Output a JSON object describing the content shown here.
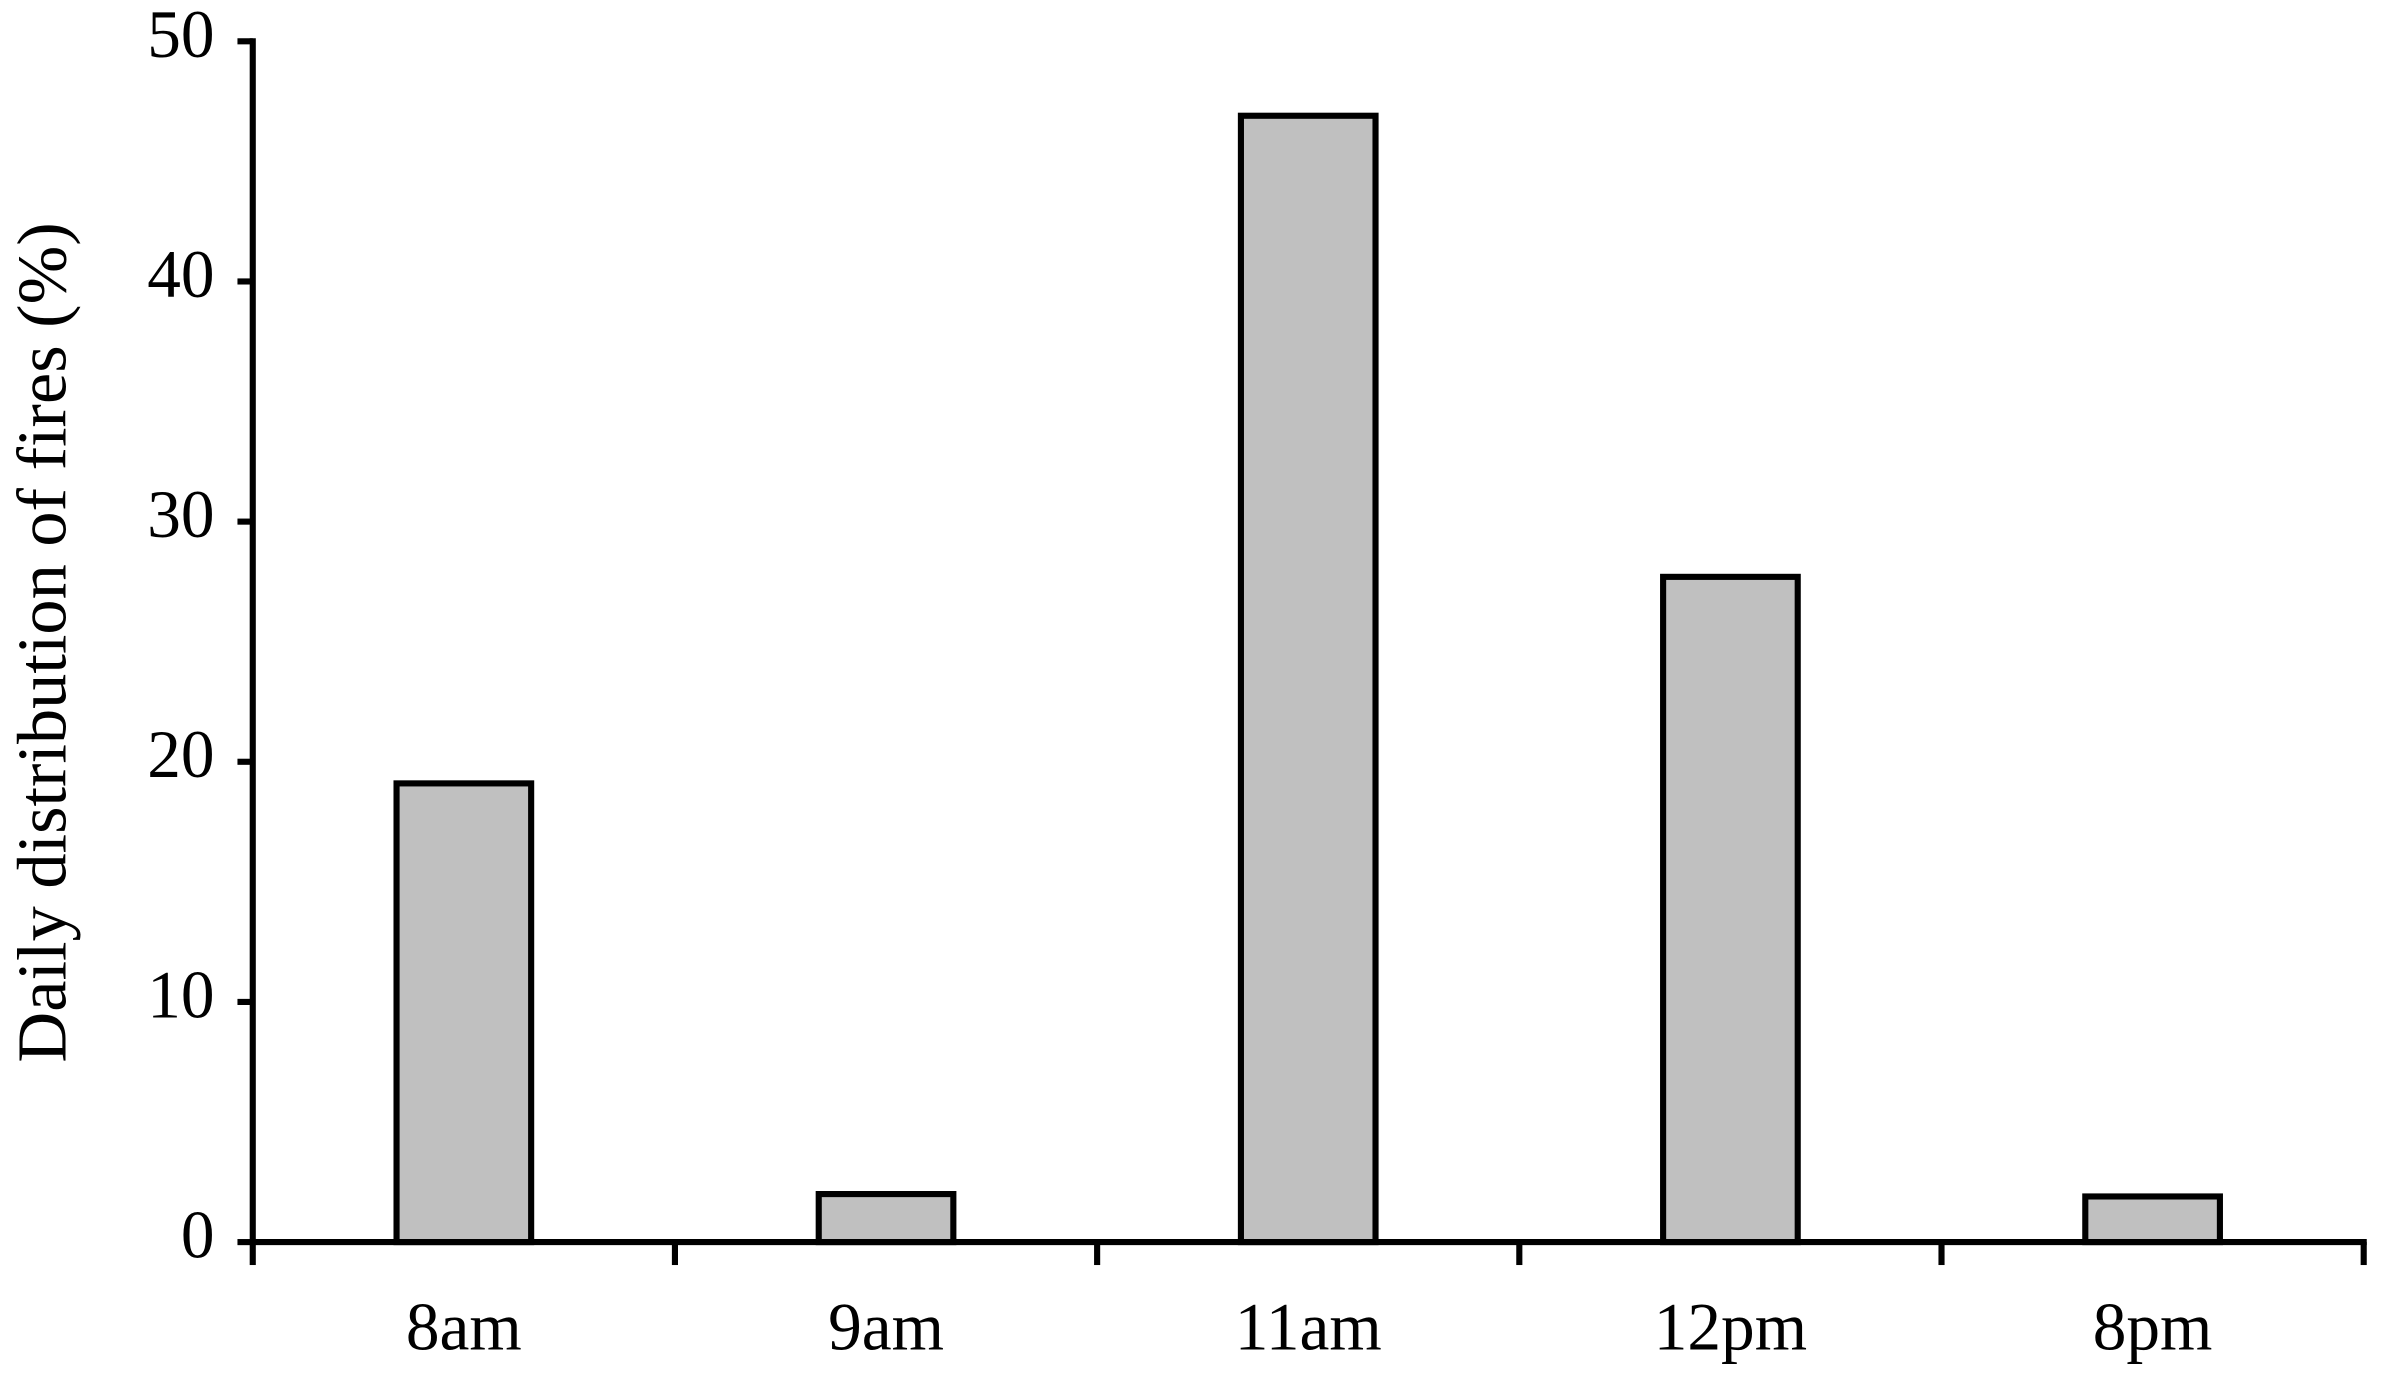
{
  "chart_data": {
    "type": "bar",
    "y_label": "Daily distribution of fires (%)",
    "categories": [
      "8am",
      "9am",
      "11am",
      "12pm",
      "8pm"
    ],
    "values": [
      19.1,
      2.0,
      46.9,
      27.7,
      1.9
    ],
    "color": "#c0c0c0",
    "ylim": [
      0,
      50
    ],
    "yticks": [
      0,
      10,
      20,
      30,
      40,
      50
    ],
    "grid": false
  }
}
